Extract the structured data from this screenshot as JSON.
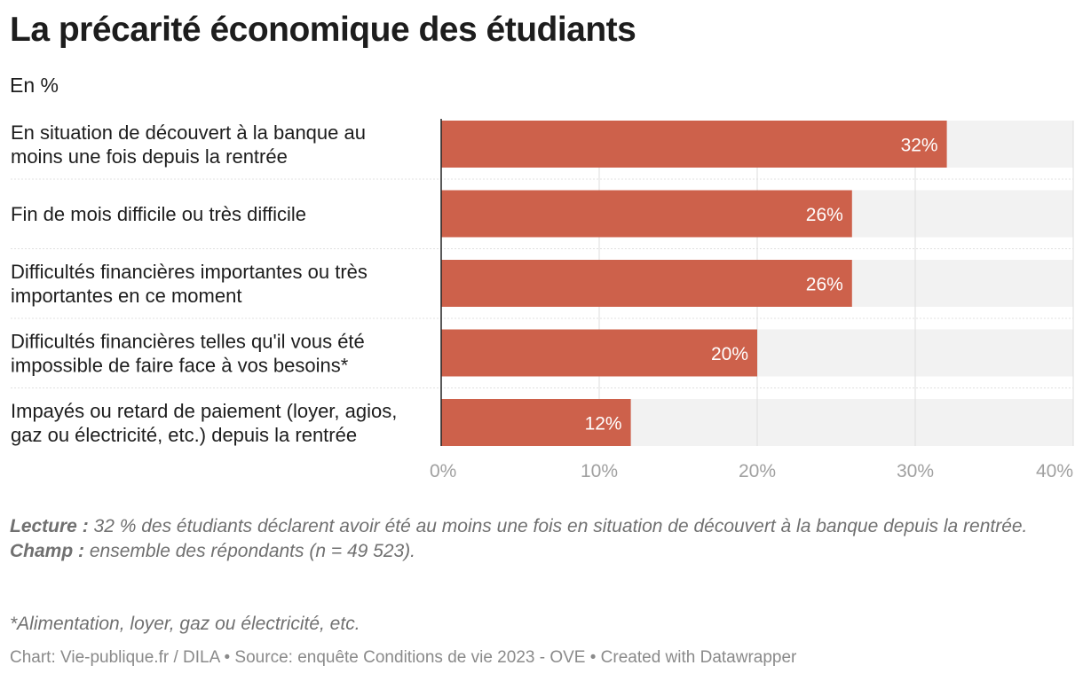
{
  "title": "La précarité économique des étudiants",
  "subtitle": "En %",
  "chart_data": {
    "type": "bar",
    "orientation": "horizontal",
    "categories": [
      [
        "En situation de découvert à la banque au",
        "moins une fois depuis la rentrée"
      ],
      [
        "Fin de mois difficile ou très difficile"
      ],
      [
        "Difficultés financières importantes ou très",
        "importantes en ce moment"
      ],
      [
        "Difficultés financières telles qu'il vous été",
        "impossible de faire face à vos besoins*"
      ],
      [
        "Impayés ou retard de paiement (loyer, agios,",
        "gaz ou électricité, etc.) depuis la rentrée"
      ]
    ],
    "values": [
      32,
      26,
      26,
      20,
      12
    ],
    "value_labels": [
      "32%",
      "26%",
      "26%",
      "20%",
      "12%"
    ],
    "xlim": [
      0,
      40
    ],
    "ticks": [
      0,
      10,
      20,
      30,
      40
    ],
    "tick_labels": [
      "0%",
      "10%",
      "20%",
      "30%",
      "40%"
    ],
    "grid": true,
    "bar_color": "#cd614b",
    "track_color": "#f2f2f2"
  },
  "notes": {
    "lecture_label": "Lecture :",
    "lecture_text": "32 % des étudiants déclarent avoir été au moins une fois en situation de découvert à la banque depuis la rentrée.",
    "champ_label": "Champ :",
    "champ_text": "ensemble des répondants (n = 49 523).",
    "footnote": "*Alimentation, loyer, gaz ou électricité, etc."
  },
  "credit": "Chart: Vie-publique.fr / DILA • Source: enquête Conditions de vie 2023 - OVE • Created with Datawrapper"
}
